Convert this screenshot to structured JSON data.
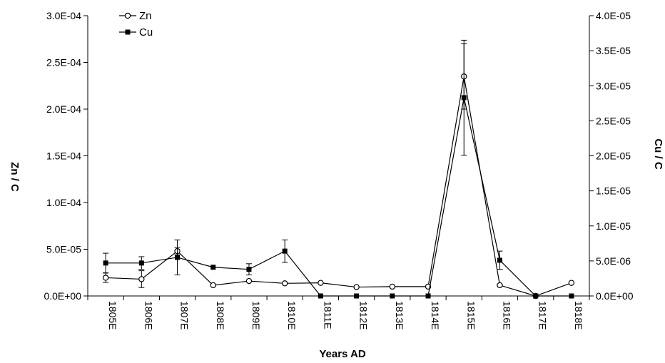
{
  "chart_data": {
    "type": "line",
    "title": "",
    "xlabel": "Years AD",
    "ylabel_left": "Zn / C",
    "ylabel_right": "Cu / C",
    "categories": [
      "1805E",
      "1806E",
      "1807E",
      "1808E",
      "1809E",
      "1810E",
      "1811E",
      "1812E",
      "1813E",
      "1814E",
      "1815E",
      "1816E",
      "1817E",
      "1818E"
    ],
    "y_left": {
      "lim": [
        0,
        0.0003
      ],
      "ticks": [
        0,
        5e-05,
        0.0001,
        0.00015,
        0.0002,
        0.00025,
        0.0003
      ],
      "tick_labels": [
        "0.0E+00",
        "5.0E-05",
        "1.0E-04",
        "1.5E-04",
        "2.0E-04",
        "2.5E-04",
        "3.0E-04"
      ]
    },
    "y_right": {
      "lim": [
        0,
        4e-05
      ],
      "ticks": [
        0,
        5e-06,
        1e-05,
        1.5e-05,
        2e-05,
        2.5e-05,
        3e-05,
        3.5e-05,
        4e-05
      ],
      "tick_labels": [
        "0.0E+00",
        "5.0E-06",
        "1.0E-05",
        "1.5E-05",
        "2.0E-05",
        "2.5E-05",
        "3.0E-05",
        "3.5E-05",
        "4.0E-05"
      ]
    },
    "legend_position": "top-left",
    "grid": false,
    "series": [
      {
        "name": "Zn",
        "axis": "left",
        "marker": "open-circle",
        "color": "#000000",
        "values": [
          1.95e-05,
          1.8e-05,
          4.8e-05,
          1.15e-05,
          1.6e-05,
          1.35e-05,
          1.4e-05,
          9.5e-06,
          1e-05,
          1e-05,
          0.000235,
          1.15e-05,
          0.0,
          1.4e-05
        ],
        "errors": [
          5e-06,
          9e-06,
          4e-06,
          null,
          null,
          null,
          null,
          null,
          null,
          null,
          3.5e-05,
          null,
          null,
          null
        ]
      },
      {
        "name": "Cu",
        "axis": "right",
        "marker": "filled-square",
        "color": "#000000",
        "values": [
          4.7e-06,
          4.7e-06,
          5.5e-06,
          4.1e-06,
          3.8e-06,
          6.4e-06,
          0.0,
          0.0,
          0.0,
          0.0,
          2.83e-05,
          5.1e-06,
          0.0,
          0.0
        ],
        "errors": [
          1.4e-06,
          9e-07,
          2.5e-06,
          null,
          8e-07,
          1.6e-06,
          null,
          null,
          null,
          null,
          8.2e-06,
          1.3e-06,
          null,
          null
        ]
      }
    ]
  }
}
